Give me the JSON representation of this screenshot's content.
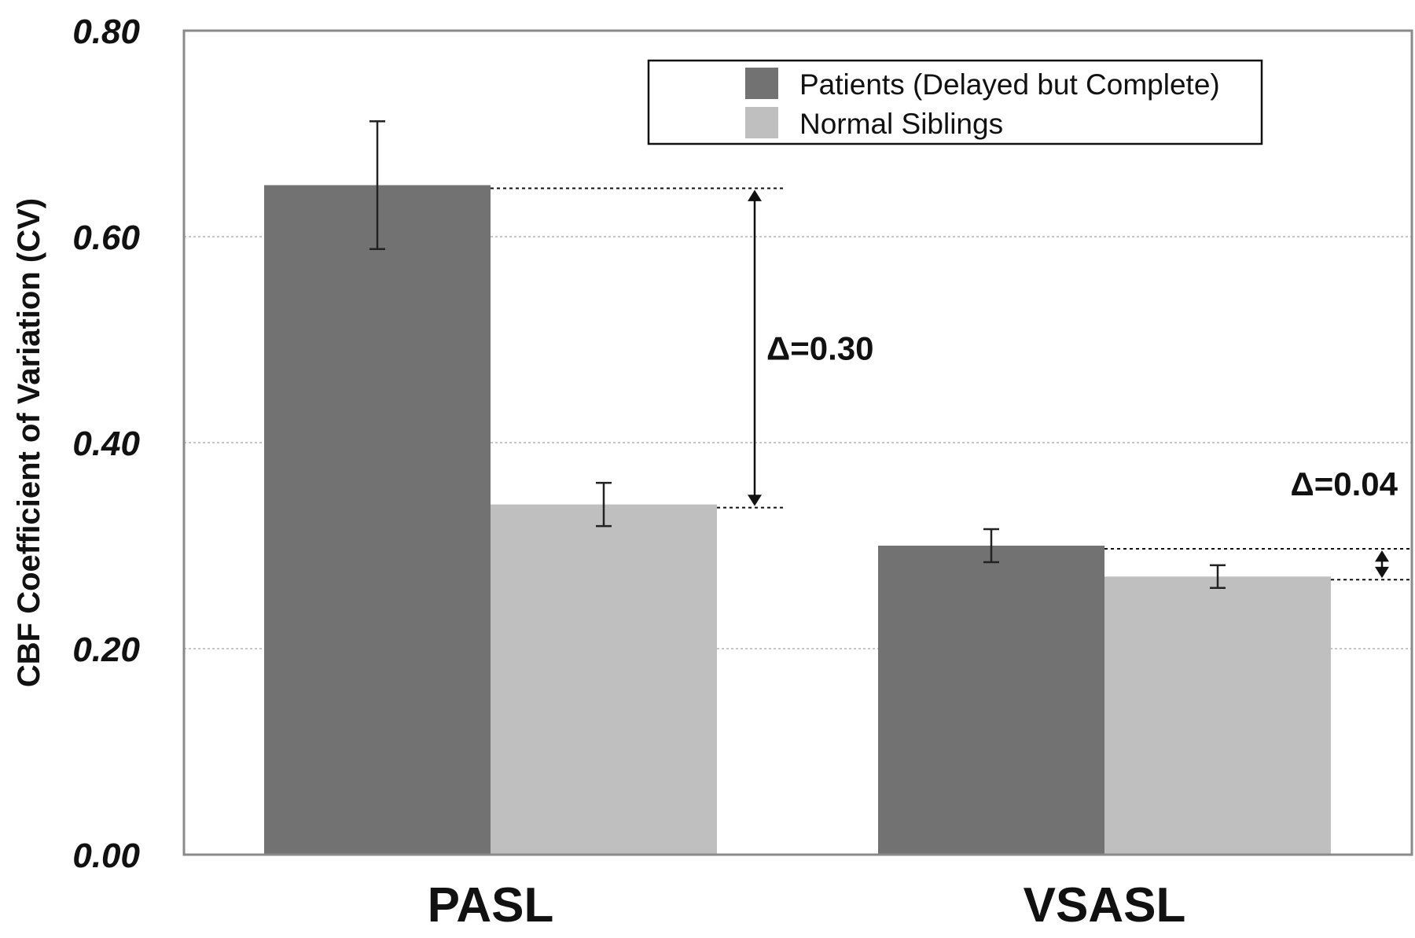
{
  "chart_data": {
    "type": "bar",
    "categories": [
      "PASL",
      "VSASL"
    ],
    "series": [
      {
        "name": "Patients (Delayed but Complete)",
        "values": [
          0.65,
          0.3
        ],
        "errors": [
          0.062,
          0.016
        ],
        "color": "#727272"
      },
      {
        "name": "Normal Siblings",
        "values": [
          0.34,
          0.27
        ],
        "errors": [
          0.021,
          0.011
        ],
        "color": "#bfbfbf"
      }
    ],
    "ylabel": "CBF Coefficient of Variation (CV)",
    "ylim": [
      0,
      0.8
    ],
    "yticks": [
      "0.00",
      "0.20",
      "0.40",
      "0.60",
      "0.80"
    ],
    "grid": true,
    "legend_position": "top-right",
    "annotations": [
      {
        "category": "PASL",
        "text": "Δ=0.30"
      },
      {
        "category": "VSASL",
        "text": "Δ=0.04"
      }
    ]
  }
}
